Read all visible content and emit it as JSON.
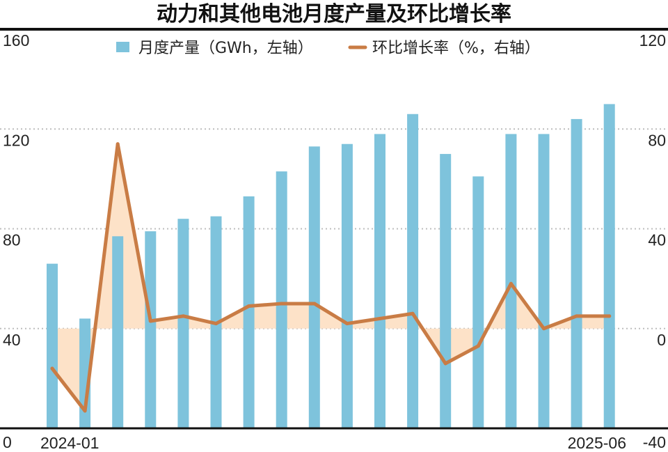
{
  "chart_data": {
    "type": "bar",
    "title": "动力和其他电池月度产量及环比增长率",
    "legend": {
      "placement": "top-center",
      "items": [
        "月度产量（GWh，左轴）",
        "环比增长率（%，右轴）"
      ]
    },
    "x_tick_labels": [
      "2024-01",
      "2025-06"
    ],
    "categories": [
      "2024-01",
      "2024-02",
      "2024-03",
      "2024-04",
      "2024-05",
      "2024-06",
      "2024-07",
      "2024-08",
      "2024-09",
      "2024-10",
      "2024-11",
      "2024-12",
      "2025-01",
      "2025-02",
      "2025-03",
      "2025-04",
      "2025-05",
      "2025-06"
    ],
    "series": [
      {
        "name": "月度产量（GWh，左轴）",
        "type": "bar",
        "axis": "left",
        "color": "#7ec3dc",
        "values": [
          66,
          44,
          77,
          79,
          84,
          85,
          93,
          103,
          113,
          114,
          118,
          126,
          110,
          101,
          118,
          118,
          124,
          130
        ]
      },
      {
        "name": "环比增长率（%，右轴）",
        "type": "line",
        "axis": "right",
        "color": "#c97c45",
        "fill_to_zero_color": "#fde2c8",
        "values": [
          -16,
          -33,
          74,
          3,
          5,
          2,
          9,
          10,
          10,
          2,
          4,
          6,
          -14,
          -7,
          18,
          0,
          5,
          5
        ]
      }
    ],
    "y_left": {
      "min": 0,
      "max": 160,
      "ticks": [
        0,
        40,
        80,
        120,
        160
      ]
    },
    "y_right": {
      "min": -40,
      "max": 120,
      "ticks": [
        -40,
        0,
        40,
        80,
        120
      ]
    },
    "grid": "horizontal dotted"
  }
}
